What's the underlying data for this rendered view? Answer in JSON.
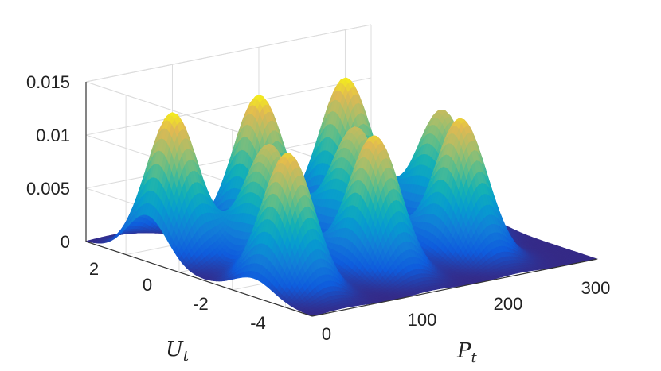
{
  "chart_data": {
    "type": "surface",
    "title": "",
    "xlabel": "P",
    "xlabel_sub": "t",
    "ylabel": "U",
    "ylabel_sub": "t",
    "zlabel": "",
    "x_ticks": [
      "0",
      "100",
      "200",
      "300"
    ],
    "y_ticks": [
      "2",
      "0",
      "-2",
      "-4"
    ],
    "z_ticks": [
      "0",
      "0.005",
      "0.01",
      "0.015"
    ],
    "xlim": [
      0,
      330
    ],
    "ylim": [
      -5,
      3.5
    ],
    "zlim": [
      0,
      0.015
    ],
    "colormap": "parula",
    "grid": true,
    "peaks": [
      {
        "x": 30,
        "y": 1.2,
        "z": 0.0135
      },
      {
        "x": 130,
        "y": 1.2,
        "z": 0.0135
      },
      {
        "x": 230,
        "y": 1.2,
        "z": 0.0135
      },
      {
        "x": 80,
        "y": -0.8,
        "z": 0.0113
      },
      {
        "x": 180,
        "y": -0.8,
        "z": 0.0113
      },
      {
        "x": 280,
        "y": -0.8,
        "z": 0.0113
      },
      {
        "x": 40,
        "y": -2.8,
        "z": 0.0128
      },
      {
        "x": 140,
        "y": -2.8,
        "z": 0.0128
      },
      {
        "x": 240,
        "y": -2.8,
        "z": 0.0128
      }
    ]
  }
}
